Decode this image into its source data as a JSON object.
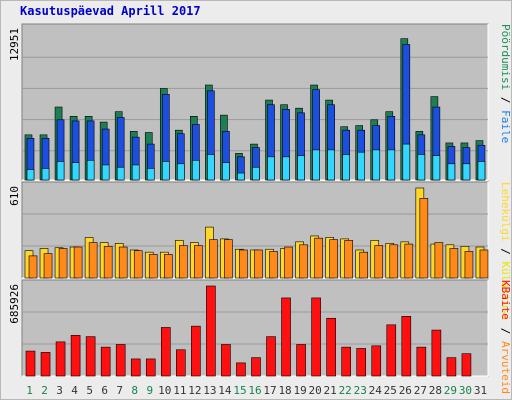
{
  "window": {
    "title": "Kasutuspäevad Aprill 2017"
  },
  "colors": {
    "hits_top": "#1e7f55",
    "hits": "#1c4fe0",
    "files": "#33d6ff",
    "pages_top": "#e6e600",
    "pages": "#ffd72b",
    "visits": "#ff8a1a",
    "kbytes": "#ff1010",
    "weekend": "#19804d",
    "weekday": "#333333"
  },
  "chart_data": [
    {
      "type": "bar",
      "title": "Kasutuspäevad Aprill 2017",
      "categories": [
        "1",
        "2",
        "3",
        "4",
        "5",
        "6",
        "7",
        "8",
        "9",
        "10",
        "11",
        "12",
        "13",
        "14",
        "15",
        "16",
        "17",
        "18",
        "19",
        "20",
        "21",
        "22",
        "23",
        "24",
        "25",
        "26",
        "27",
        "28",
        "29",
        "30",
        "31"
      ],
      "weekend_days": [
        "1",
        "2",
        "8",
        "9",
        "15",
        "16",
        "22",
        "23",
        "29",
        "30"
      ],
      "ymax_label": "12951",
      "ylim": [
        0,
        12951
      ],
      "legend": [
        "Pöördumisi",
        "Faile"
      ],
      "series": [
        {
          "name": "Pöördumisi",
          "values": [
            3900,
            3900,
            6300,
            5500,
            5500,
            5000,
            5900,
            4200,
            4100,
            7900,
            4300,
            5500,
            8200,
            5600,
            2300,
            3100,
            6900,
            6500,
            6200,
            8200,
            6900,
            4600,
            4700,
            5200,
            5900,
            12200,
            4200,
            7200,
            3200,
            3200,
            3400
          ]
        },
        {
          "name": "Faile",
          "values": [
            3600,
            3600,
            5200,
            5100,
            5100,
            4400,
            5400,
            3700,
            3100,
            7400,
            4000,
            4800,
            7700,
            4200,
            2000,
            2800,
            6500,
            6100,
            5800,
            7800,
            6500,
            4300,
            4300,
            4700,
            5500,
            11700,
            3900,
            6300,
            2900,
            2800,
            3000
          ]
        },
        {
          "name": "Faile (cyan)",
          "values": [
            900,
            1000,
            1600,
            1500,
            1700,
            1300,
            1100,
            1300,
            1000,
            1600,
            1400,
            1700,
            2200,
            1500,
            600,
            1100,
            2000,
            2000,
            2100,
            2600,
            2600,
            2200,
            2400,
            2600,
            2600,
            3100,
            2200,
            2100,
            1400,
            1400,
            1600
          ]
        }
      ]
    },
    {
      "type": "bar",
      "ymax_label": "610",
      "ylim": [
        0,
        610
      ],
      "legend": [
        "Külastusi",
        "Lehekülgi",
        "Arvuteid"
      ],
      "series": [
        {
          "name": "Lehekülgi",
          "values": [
            185,
            200,
            205,
            210,
            275,
            240,
            235,
            190,
            175,
            175,
            255,
            240,
            345,
            265,
            195,
            190,
            195,
            200,
            245,
            285,
            275,
            265,
            190,
            255,
            235,
            245,
            610,
            230,
            225,
            215,
            210
          ]
        },
        {
          "name": "Arvuteid",
          "values": [
            150,
            165,
            200,
            210,
            240,
            215,
            210,
            185,
            160,
            160,
            220,
            220,
            260,
            260,
            190,
            190,
            180,
            210,
            225,
            270,
            260,
            255,
            175,
            220,
            225,
            230,
            540,
            240,
            200,
            180,
            190
          ]
        }
      ]
    },
    {
      "type": "bar",
      "ymax_label": "685926",
      "ylim": [
        0,
        685926
      ],
      "legend": [
        "KBaite"
      ],
      "series": [
        {
          "name": "KBaite",
          "values": [
            190000,
            180000,
            260000,
            310000,
            300000,
            220000,
            240000,
            130000,
            130000,
            370000,
            200000,
            380000,
            685926,
            240000,
            100000,
            140000,
            300000,
            595000,
            240000,
            595000,
            440000,
            220000,
            210000,
            230000,
            390000,
            455000,
            220000,
            350000,
            140000,
            170000,
            0
          ]
        }
      ]
    }
  ]
}
